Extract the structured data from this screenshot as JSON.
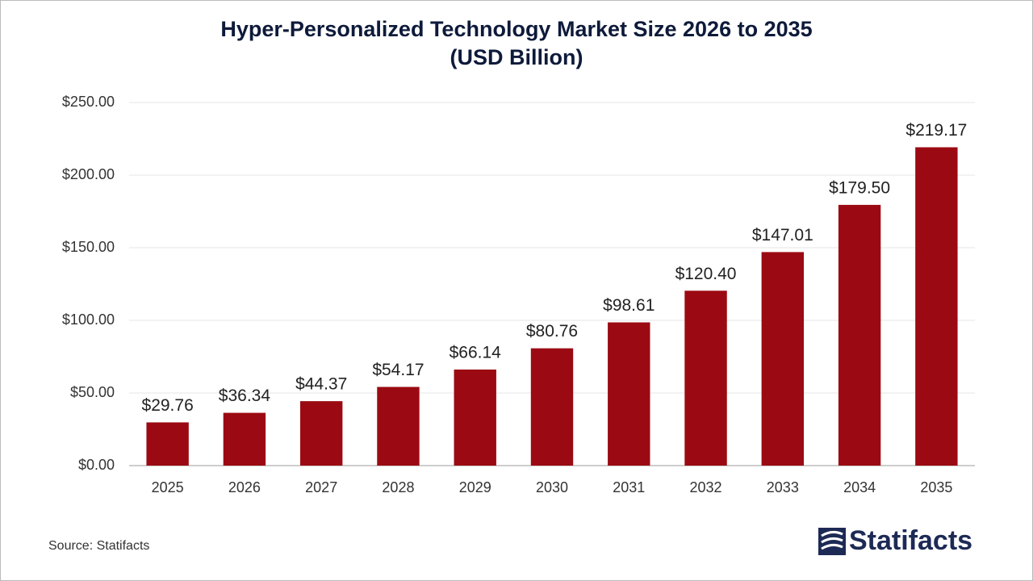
{
  "chart_data": {
    "type": "bar",
    "title": "Hyper-Personalized Technology Market Size 2026 to 2035",
    "subtitle": "(USD Billion)",
    "categories": [
      "2025",
      "2026",
      "2027",
      "2028",
      "2029",
      "2030",
      "2031",
      "2032",
      "2033",
      "2034",
      "2035"
    ],
    "values": [
      29.76,
      36.34,
      44.37,
      54.17,
      66.14,
      80.76,
      98.61,
      120.4,
      147.01,
      179.5,
      219.17
    ],
    "value_labels": [
      "$29.76",
      "$36.34",
      "$44.37",
      "$54.17",
      "$66.14",
      "$80.76",
      "$98.61",
      "$120.40",
      "$147.01",
      "$179.50",
      "$219.17"
    ],
    "color": "#9b0a12",
    "ylim": [
      0,
      250
    ],
    "yticks": [
      {
        "value": 0,
        "label": "$0.00"
      },
      {
        "value": 50,
        "label": "$50.00"
      },
      {
        "value": 100,
        "label": "$100.00"
      },
      {
        "value": 150,
        "label": "$150.00"
      },
      {
        "value": 200,
        "label": "$200.00"
      },
      {
        "value": 250,
        "label": "$250.00"
      }
    ],
    "grid": true,
    "source": "Source: Statifacts",
    "brand": "Statifacts"
  }
}
